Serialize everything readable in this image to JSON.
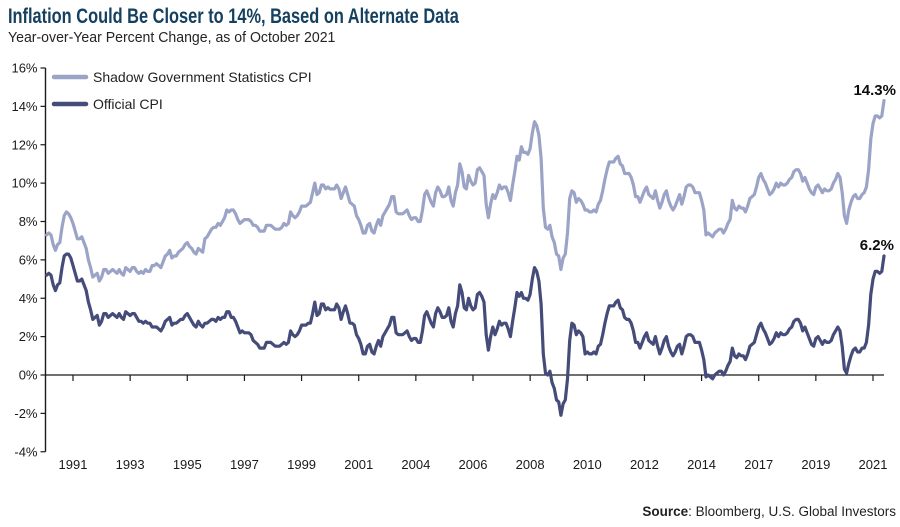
{
  "header": {
    "title": "Inflation Could Be Closer to 14%, Based on Alternate Data",
    "subtitle": "Year-over-Year Percent Change, as of October 2021"
  },
  "footer": {
    "source_label": "Source",
    "source_rest": ": Bloomberg, U.S. Global Investors"
  },
  "colors": {
    "title_text": "#15405f",
    "body_text": "#231f20",
    "axis": "#1a1a1a",
    "sgs_line": "#9ba4c6",
    "official_line": "#454c79"
  },
  "chart_data": {
    "type": "line",
    "title": "Inflation Could Be Closer to 14%, Based on Alternate Data",
    "subtitle": "Year-over-Year Percent Change, as of October 2021",
    "x_unit": "month",
    "x_start": "1990-01",
    "x_end": "2021-10",
    "ylim": [
      -4,
      16
    ],
    "grid": false,
    "zero_line": true,
    "legend_position": "top-left",
    "y_ticks": [
      {
        "value": 16,
        "label": "16%"
      },
      {
        "value": 14,
        "label": "14%"
      },
      {
        "value": 12,
        "label": "12%"
      },
      {
        "value": 10,
        "label": "10%"
      },
      {
        "value": 8,
        "label": "8%"
      },
      {
        "value": 6,
        "label": "6%"
      },
      {
        "value": 4,
        "label": "4%"
      },
      {
        "value": 2,
        "label": "2%"
      },
      {
        "value": 0,
        "label": "0%"
      },
      {
        "value": -2,
        "label": "-2%"
      },
      {
        "value": -4,
        "label": "-4%"
      }
    ],
    "x_ticks": [
      {
        "label": "1991",
        "month": 12
      },
      {
        "label": "1993",
        "month": 38
      },
      {
        "label": "1995",
        "month": 64
      },
      {
        "label": "1997",
        "month": 90
      },
      {
        "label": "1999",
        "month": 116
      },
      {
        "label": "2001",
        "month": 142
      },
      {
        "label": "2004",
        "month": 168
      },
      {
        "label": "2006",
        "month": 194
      },
      {
        "label": "2008",
        "month": 220
      },
      {
        "label": "2010",
        "month": 246
      },
      {
        "label": "2012",
        "month": 272
      },
      {
        "label": "2014",
        "month": 298
      },
      {
        "label": "2017",
        "month": 324
      },
      {
        "label": "2019",
        "month": 350
      },
      {
        "label": "2021",
        "month": 376
      }
    ],
    "series": [
      {
        "name": "Shadow Government Statistics CPI",
        "color": "#9ba4c6",
        "end_label": "14.3%",
        "values": [
          7.3,
          7.4,
          7.3,
          6.8,
          6.5,
          6.8,
          6.9,
          7.7,
          8.3,
          8.5,
          8.4,
          8.2,
          7.9,
          7.5,
          7.1,
          7.1,
          7.2,
          6.9,
          6.6,
          6.0,
          5.6,
          5.1,
          5.2,
          5.3,
          4.9,
          5.1,
          5.5,
          5.5,
          5.3,
          5.4,
          5.5,
          5.4,
          5.3,
          5.5,
          5.3,
          5.2,
          5.6,
          5.5,
          5.4,
          5.6,
          5.6,
          5.4,
          5.3,
          5.4,
          5.3,
          5.5,
          5.4,
          5.4,
          5.7,
          5.7,
          5.8,
          5.7,
          5.6,
          5.9,
          6.2,
          6.3,
          6.5,
          6.1,
          6.2,
          6.2,
          6.4,
          6.5,
          6.6,
          6.8,
          6.9,
          6.7,
          6.6,
          6.4,
          6.3,
          6.6,
          6.5,
          6.4,
          7.1,
          7.2,
          7.4,
          7.6,
          7.7,
          7.7,
          7.9,
          7.8,
          8.0,
          8.2,
          8.6,
          8.5,
          8.6,
          8.6,
          8.4,
          8.1,
          7.9,
          8.0,
          8.1,
          8.1,
          8.1,
          8.0,
          7.8,
          7.8,
          7.7,
          7.5,
          7.5,
          7.5,
          7.8,
          7.8,
          7.8,
          7.7,
          7.6,
          7.6,
          7.6,
          7.7,
          7.9,
          7.8,
          7.9,
          8.5,
          8.3,
          8.2,
          8.3,
          8.5,
          8.8,
          8.8,
          8.8,
          8.9,
          9.0,
          9.5,
          10.0,
          9.4,
          9.5,
          9.9,
          9.9,
          9.7,
          9.8,
          9.7,
          9.7,
          9.7,
          9.9,
          9.7,
          9.2,
          9.5,
          9.8,
          9.4,
          9.0,
          8.9,
          8.8,
          8.3,
          8.1,
          7.8,
          7.4,
          7.4,
          7.8,
          7.9,
          7.5,
          7.4,
          7.8,
          8.1,
          7.8,
          8.3,
          8.5,
          8.7,
          8.9,
          9.3,
          9.3,
          8.5,
          8.4,
          8.4,
          8.4,
          8.5,
          8.6,
          8.3,
          8.1,
          8.2,
          8.2,
          8.0,
          8.0,
          8.6,
          9.4,
          9.6,
          9.3,
          9.0,
          8.8,
          9.5,
          9.8,
          9.6,
          9.3,
          9.3,
          9.4,
          9.8,
          9.1,
          8.8,
          9.5,
          9.9,
          11.0,
          10.6,
          9.8,
          9.7,
          10.4,
          10.1,
          9.9,
          10.0,
          10.7,
          10.8,
          10.6,
          10.4,
          8.9,
          8.2,
          8.9,
          9.4,
          9.2,
          9.5,
          9.9,
          9.7,
          9.8,
          9.8,
          9.5,
          9.1,
          9.9,
          10.6,
          11.4,
          11.2,
          11.9,
          11.6,
          11.6,
          11.5,
          11.8,
          12.6,
          13.2,
          13.0,
          12.5,
          11.3,
          8.7,
          7.7,
          7.6,
          7.8,
          7.2,
          6.9,
          6.3,
          6.2,
          5.5,
          6.1,
          6.3,
          7.4,
          9.2,
          9.6,
          9.5,
          9.0,
          9.2,
          9.1,
          8.9,
          8.6,
          8.6,
          8.5,
          8.5,
          8.6,
          8.5,
          8.9,
          9.1,
          9.6,
          10.2,
          10.7,
          11.1,
          11.1,
          11.1,
          11.3,
          11.4,
          11.0,
          10.9,
          10.5,
          10.5,
          10.5,
          10.3,
          9.9,
          9.3,
          9.3,
          9.0,
          9.3,
          9.6,
          9.8,
          9.4,
          9.3,
          9.2,
          9.6,
          9.1,
          8.7,
          9.0,
          9.4,
          9.6,
          9.1,
          8.8,
          8.6,
          8.8,
          9.1,
          9.4,
          8.9,
          9.3,
          9.8,
          9.9,
          9.9,
          9.8,
          9.5,
          9.5,
          9.5,
          9.1,
          8.6,
          7.3,
          7.4,
          7.3,
          7.2,
          7.4,
          7.5,
          7.6,
          7.6,
          7.4,
          7.6,
          7.9,
          8.1,
          9.1,
          8.7,
          8.6,
          8.8,
          8.7,
          8.7,
          8.5,
          8.8,
          9.2,
          9.3,
          9.4,
          9.8,
          10.3,
          10.5,
          10.2,
          10.0,
          9.7,
          9.4,
          9.5,
          9.7,
          10.0,
          9.8,
          10.0,
          9.9,
          9.9,
          10.0,
          10.2,
          10.3,
          10.6,
          10.7,
          10.7,
          10.5,
          10.1,
          10.3,
          10.0,
          9.7,
          9.5,
          9.4,
          9.8,
          9.9,
          9.7,
          9.5,
          9.7,
          9.6,
          9.6,
          9.7,
          10.0,
          10.2,
          10.5,
          10.3,
          9.5,
          8.3,
          7.9,
          8.6,
          9.0,
          9.3,
          9.4,
          9.2,
          9.2,
          9.4,
          9.5,
          9.8,
          10.7,
          12.3,
          13.1,
          13.5,
          13.5,
          13.4,
          13.5,
          14.3
        ]
      },
      {
        "name": "Official CPI",
        "color": "#454c79",
        "end_label": "6.2%",
        "values": [
          5.2,
          5.3,
          5.2,
          4.7,
          4.4,
          4.7,
          4.8,
          5.6,
          6.2,
          6.3,
          6.3,
          6.1,
          5.7,
          5.3,
          4.9,
          4.9,
          5.0,
          4.7,
          4.4,
          3.8,
          3.4,
          2.9,
          3.0,
          3.1,
          2.6,
          2.8,
          3.2,
          3.2,
          3.0,
          3.1,
          3.2,
          3.1,
          3.0,
          3.2,
          3.0,
          2.9,
          3.3,
          3.2,
          3.1,
          3.2,
          3.2,
          3.0,
          2.8,
          2.8,
          2.7,
          2.8,
          2.7,
          2.7,
          2.5,
          2.5,
          2.5,
          2.4,
          2.3,
          2.5,
          2.8,
          2.9,
          3.0,
          2.6,
          2.7,
          2.7,
          2.8,
          2.9,
          2.9,
          3.1,
          3.2,
          3.0,
          2.8,
          2.6,
          2.5,
          2.8,
          2.6,
          2.5,
          2.7,
          2.7,
          2.8,
          2.9,
          2.9,
          2.8,
          3.0,
          2.9,
          3.0,
          3.0,
          3.3,
          3.3,
          3.0,
          3.0,
          2.8,
          2.5,
          2.2,
          2.3,
          2.2,
          2.2,
          2.2,
          2.1,
          1.8,
          1.7,
          1.6,
          1.4,
          1.4,
          1.4,
          1.7,
          1.7,
          1.7,
          1.6,
          1.5,
          1.5,
          1.5,
          1.6,
          1.7,
          1.6,
          1.7,
          2.3,
          2.1,
          2.0,
          2.1,
          2.3,
          2.6,
          2.6,
          2.6,
          2.7,
          2.7,
          3.2,
          3.8,
          3.1,
          3.2,
          3.7,
          3.7,
          3.4,
          3.5,
          3.4,
          3.4,
          3.4,
          3.7,
          3.5,
          2.9,
          3.3,
          3.6,
          3.2,
          2.7,
          2.7,
          2.6,
          2.1,
          1.9,
          1.6,
          1.1,
          1.1,
          1.5,
          1.6,
          1.2,
          1.1,
          1.5,
          1.8,
          1.5,
          2.0,
          2.2,
          2.4,
          2.6,
          3.0,
          3.0,
          2.2,
          2.1,
          2.1,
          2.1,
          2.2,
          2.3,
          2.0,
          1.8,
          1.9,
          1.9,
          1.7,
          1.7,
          2.3,
          3.1,
          3.3,
          3.0,
          2.7,
          2.5,
          3.2,
          3.5,
          3.3,
          3.0,
          3.0,
          3.1,
          3.5,
          2.8,
          2.5,
          3.2,
          3.6,
          4.7,
          4.3,
          3.5,
          3.4,
          4.0,
          3.6,
          3.4,
          3.5,
          4.2,
          4.3,
          4.1,
          3.8,
          2.1,
          1.3,
          2.0,
          2.5,
          2.1,
          2.4,
          2.8,
          2.6,
          2.7,
          2.7,
          2.4,
          2.0,
          2.8,
          3.5,
          4.3,
          4.1,
          4.3,
          4.0,
          4.0,
          3.9,
          4.2,
          5.0,
          5.6,
          5.4,
          4.9,
          3.7,
          1.1,
          0.1,
          0.0,
          0.2,
          -0.4,
          -0.7,
          -1.3,
          -1.4,
          -2.1,
          -1.5,
          -1.3,
          -0.2,
          1.8,
          2.7,
          2.6,
          2.1,
          2.3,
          2.2,
          2.0,
          1.1,
          1.2,
          1.1,
          1.1,
          1.2,
          1.1,
          1.5,
          1.6,
          2.1,
          2.7,
          3.2,
          3.6,
          3.6,
          3.6,
          3.8,
          3.9,
          3.5,
          3.4,
          3.0,
          2.9,
          2.9,
          2.7,
          2.3,
          1.7,
          1.7,
          1.4,
          1.7,
          2.0,
          2.2,
          1.8,
          1.7,
          1.6,
          2.0,
          1.5,
          1.1,
          1.4,
          1.8,
          2.0,
          1.5,
          1.2,
          1.0,
          1.2,
          1.5,
          1.6,
          1.1,
          1.5,
          2.0,
          2.1,
          2.1,
          2.0,
          1.7,
          1.7,
          1.7,
          1.3,
          0.8,
          -0.1,
          0.0,
          -0.1,
          -0.2,
          0.0,
          0.1,
          0.2,
          0.2,
          0.0,
          0.2,
          0.5,
          0.7,
          1.4,
          1.0,
          0.9,
          1.1,
          1.0,
          1.0,
          0.8,
          1.1,
          1.5,
          1.6,
          1.7,
          2.1,
          2.5,
          2.7,
          2.4,
          2.2,
          1.9,
          1.6,
          1.7,
          1.9,
          2.2,
          2.0,
          2.2,
          2.1,
          2.1,
          2.2,
          2.4,
          2.5,
          2.8,
          2.9,
          2.9,
          2.7,
          2.3,
          2.5,
          2.2,
          1.9,
          1.6,
          1.5,
          1.9,
          2.0,
          1.8,
          1.6,
          1.8,
          1.7,
          1.7,
          1.8,
          2.1,
          2.3,
          2.5,
          2.3,
          1.5,
          0.3,
          0.1,
          0.6,
          1.0,
          1.3,
          1.4,
          1.2,
          1.2,
          1.4,
          1.4,
          1.7,
          2.6,
          4.2,
          5.0,
          5.4,
          5.4,
          5.3,
          5.4,
          6.2
        ]
      }
    ]
  }
}
